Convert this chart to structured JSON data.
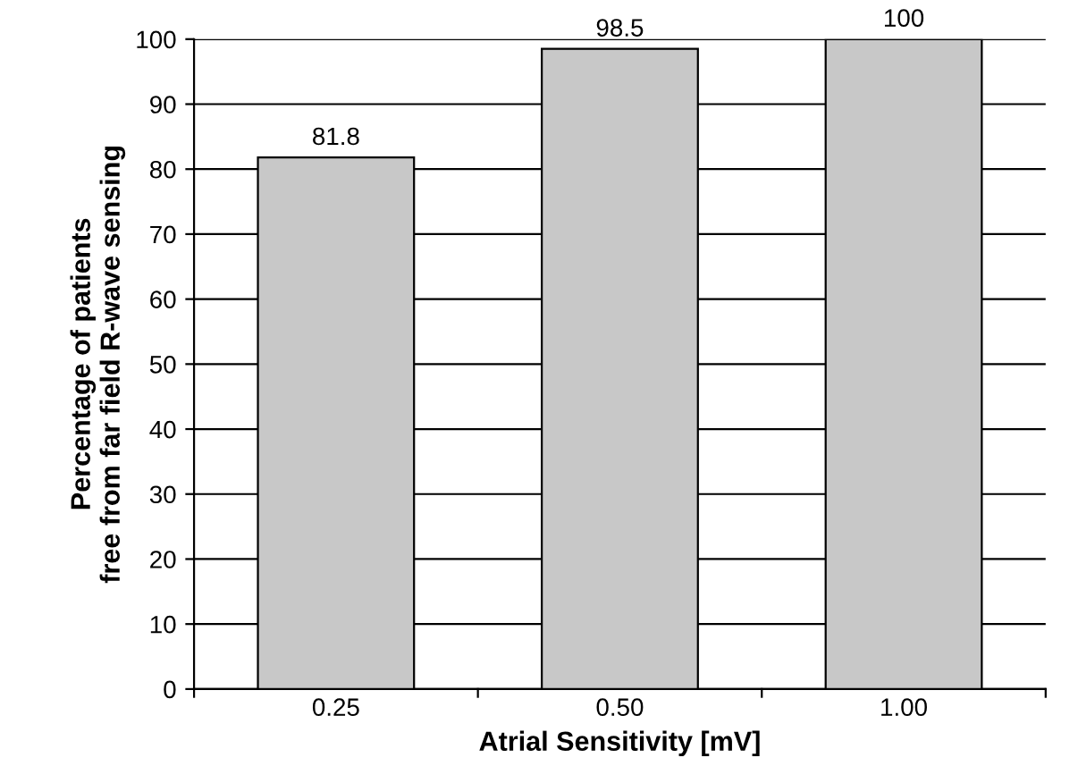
{
  "chart_data": {
    "type": "bar",
    "xlabel": "Atrial Sensitivity [mV]",
    "ylabel": "Percentage of patients\nfree from far field R-wave sensing",
    "categories": [
      "0.25",
      "0.50",
      "1.00"
    ],
    "values": [
      81.8,
      98.5,
      100
    ],
    "color": "#c8c8c8",
    "ylim": [
      0,
      100
    ],
    "yticks": [
      0,
      10,
      20,
      30,
      40,
      50,
      60,
      70,
      80,
      90,
      100
    ],
    "grid": "y",
    "data_labels": true
  }
}
